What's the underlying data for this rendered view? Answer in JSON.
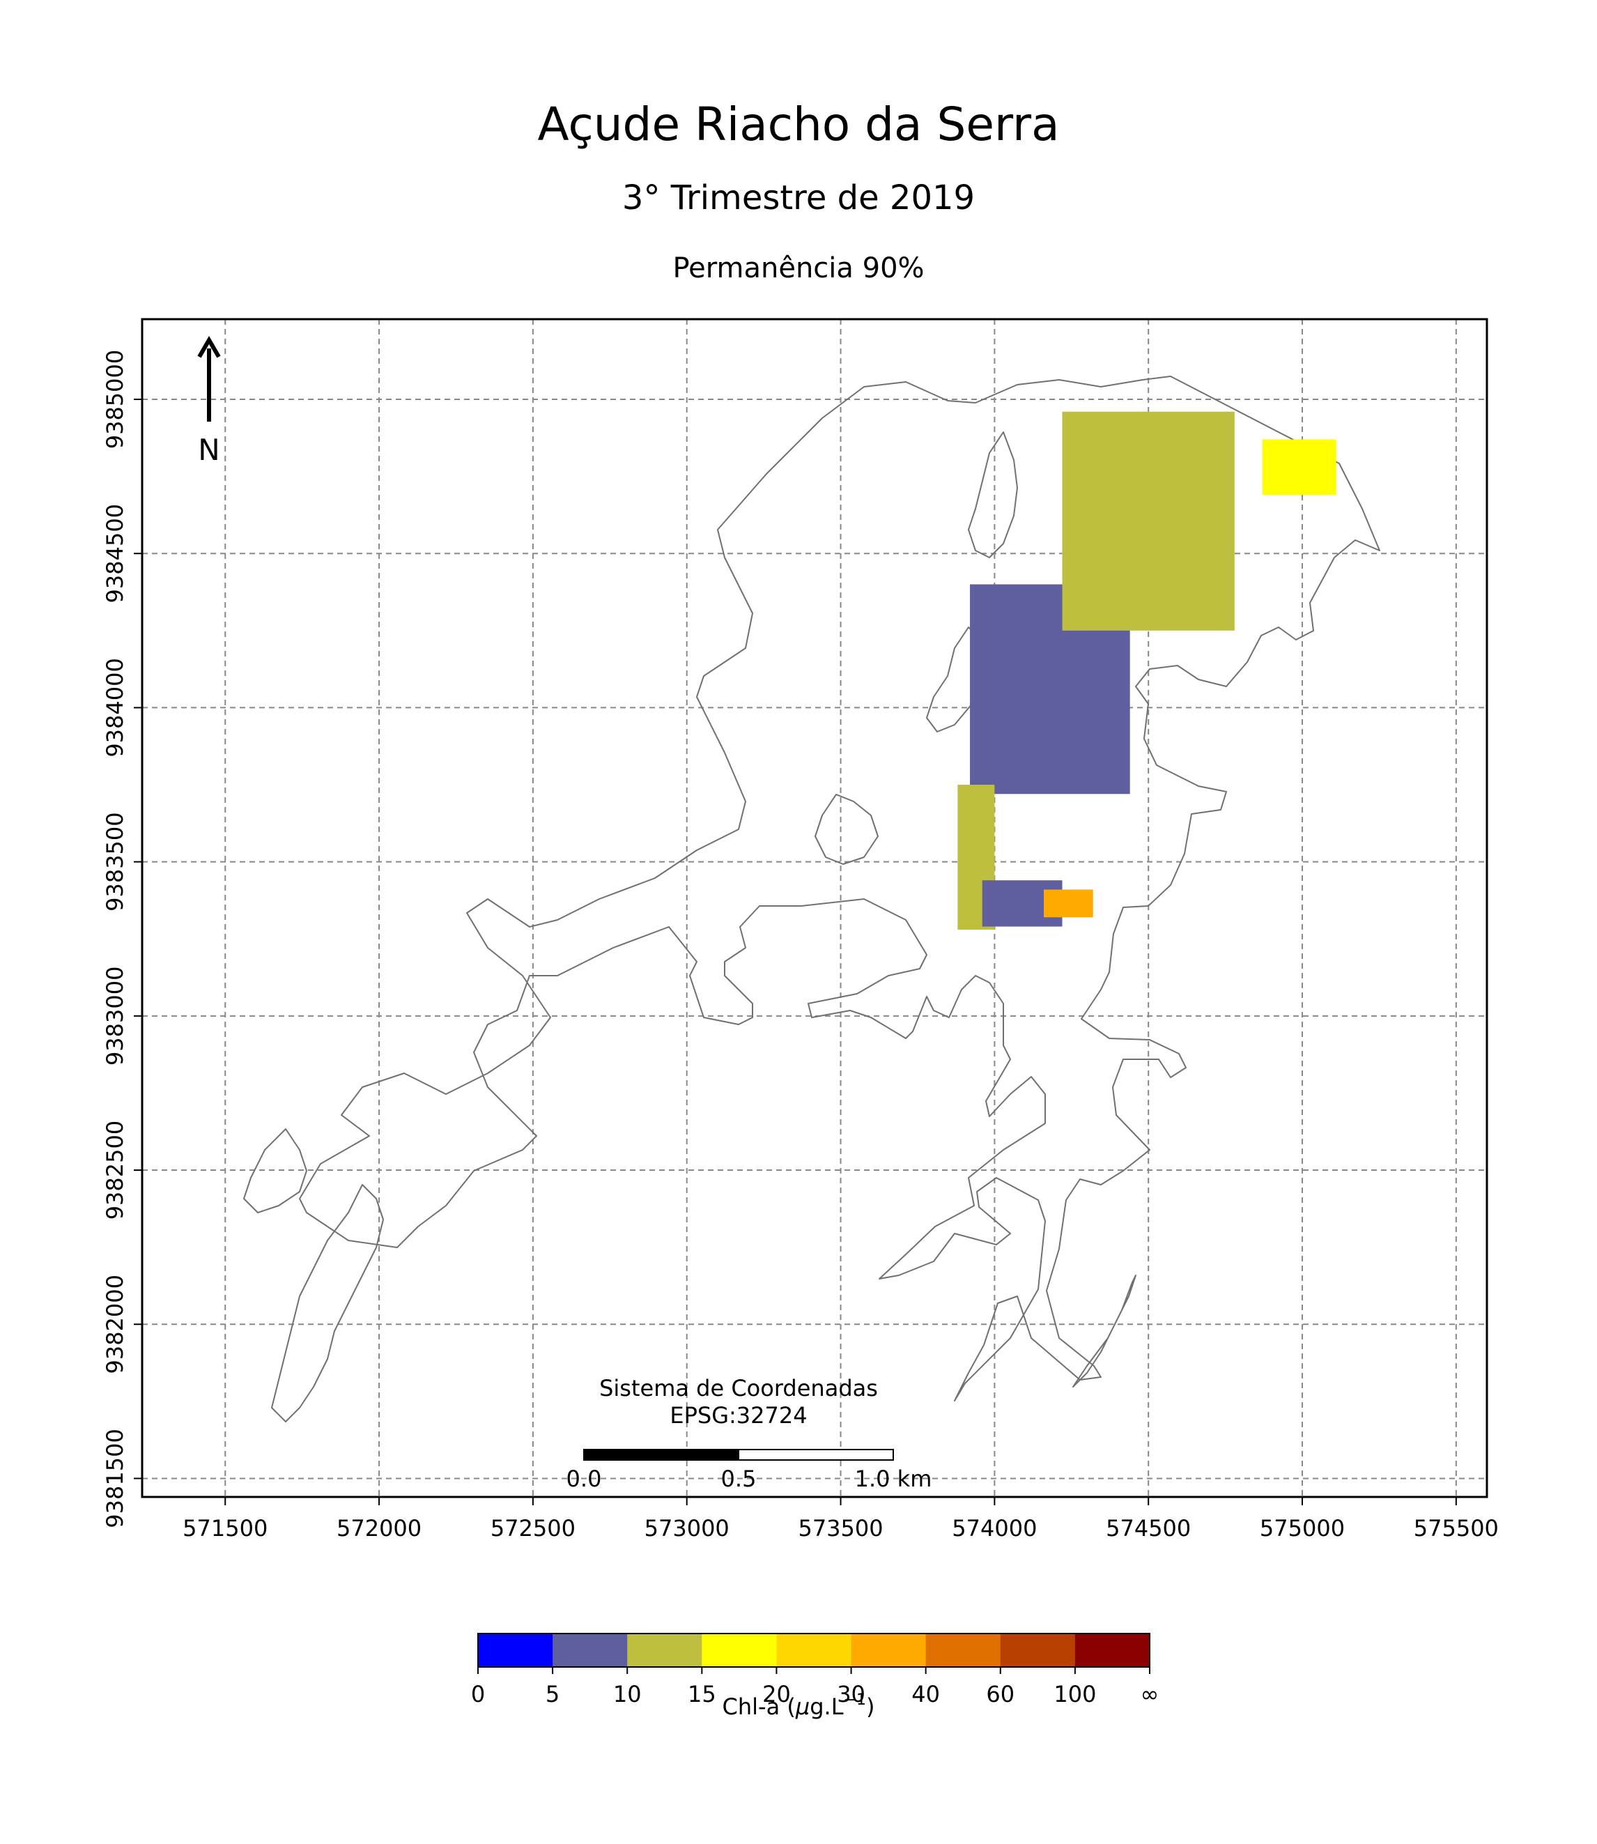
{
  "title": "Açude Riacho da Serra",
  "subtitle": "3° Trimestre de 2019",
  "caption": "Permanência 90%",
  "north_label": "N",
  "crs": {
    "line1": "Sistema de Coordenadas",
    "line2": "EPSG:32724"
  },
  "scalebar": {
    "labels": [
      "0.0",
      "0.5",
      "1.0 km"
    ]
  },
  "axes": {
    "x_ticks": [
      "571500",
      "572000",
      "572500",
      "573000",
      "573500",
      "574000",
      "574500",
      "575000",
      "575500"
    ],
    "y_ticks": [
      "9385000",
      "9384500",
      "9384000",
      "9383500",
      "9383000",
      "9382500",
      "9382000",
      "9381500"
    ],
    "xlim": [
      571230,
      575600
    ],
    "ylim": [
      9381440,
      9385260
    ],
    "grid": true
  },
  "legend": {
    "label_prefix": "Chl-a (",
    "label_mu": "μ",
    "label_units": "g.L",
    "label_exp": "−1",
    "label_suffix": ")",
    "bin_labels": [
      "0",
      "5",
      "10",
      "15",
      "20",
      "30",
      "40",
      "60",
      "100",
      "∞"
    ],
    "colors": [
      "#0000ff",
      "#5f5f9f",
      "#bfbf3f",
      "#ffff00",
      "#ffd700",
      "#ffaa00",
      "#e07000",
      "#b84000",
      "#8b0000"
    ]
  },
  "chart_data": {
    "type": "heatmap",
    "title": "Açude Riacho da Serra",
    "subtitle": "3° Trimestre de 2019",
    "xlabel": "",
    "ylabel": "",
    "xlim": [
      571230,
      575600
    ],
    "ylim": [
      9381440,
      9385260
    ],
    "grid": true,
    "colorbar": {
      "bins": [
        0,
        5,
        10,
        15,
        20,
        30,
        40,
        60,
        100,
        "∞"
      ],
      "colors": [
        "#0000ff",
        "#5f5f9f",
        "#bfbf3f",
        "#ffff00",
        "#ffd700",
        "#ffaa00",
        "#e07000",
        "#b84000",
        "#8b0000"
      ]
    },
    "pixel_regions": [
      {
        "class_range": "5-10",
        "color": "#5f5f9f",
        "x": [
          573920,
          574440
        ],
        "y": [
          9383720,
          9384400
        ]
      },
      {
        "class_range": "10-15",
        "color": "#bfbf3f",
        "x": [
          574220,
          574780
        ],
        "y": [
          9384250,
          9384960
        ]
      },
      {
        "class_range": "10-15",
        "color": "#bfbf3f",
        "x": [
          573880,
          574000
        ],
        "y": [
          9383280,
          9383750
        ]
      },
      {
        "class_range": "5-10",
        "color": "#5f5f9f",
        "x": [
          573960,
          574220
        ],
        "y": [
          9383290,
          9383440
        ]
      },
      {
        "class_range": "15-20",
        "color": "#ffff00",
        "x": [
          574870,
          575110
        ],
        "y": [
          9384690,
          9384870
        ]
      },
      {
        "class_range": "30-40",
        "color": "#ffaa00",
        "x": [
          574160,
          574320
        ],
        "y": [
          9383320,
          9383410
        ]
      }
    ]
  }
}
